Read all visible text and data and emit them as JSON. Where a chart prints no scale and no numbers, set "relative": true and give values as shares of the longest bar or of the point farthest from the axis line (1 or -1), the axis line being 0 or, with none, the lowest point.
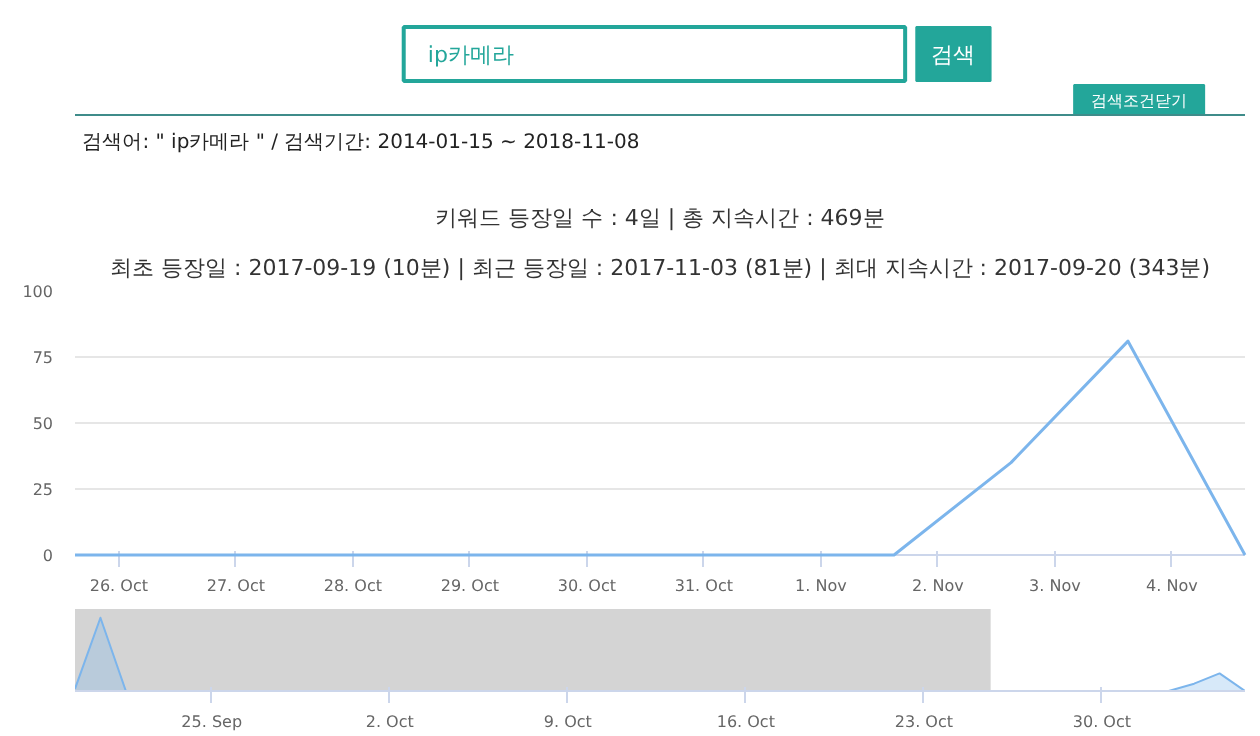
{
  "chart_data": [
    {
      "type": "line",
      "title": "키워드 등장일 수 : 4일 | 총 지속시간 : 469분",
      "subtitle": "최초 등장일 : 2017-09-19 (10분) | 최근 등장일 : 2017-11-03 (81분) | 최대 지속시간 : 2017-09-20 (343분)",
      "annotations": [
        "ip카메라",
        "검색",
        "검색조건닫기",
        "검색어: \" ip카메라 \" / 검색기간: 2014-01-15 ~ 2018-11-08"
      ],
      "x": [
        "2017-10-25T15:00",
        "2017-10-26T15:00",
        "2017-10-27T15:00",
        "2017-10-28T15:00",
        "2017-10-29T15:00",
        "2017-10-30T15:00",
        "2017-10-31T15:00",
        "2017-11-01T15:00",
        "2017-11-02T15:00",
        "2017-11-03T15:00",
        "2017-11-04T15:00"
      ],
      "series": [
        {
          "color": "#7cb5ec",
          "values": [
            0,
            0,
            0,
            0,
            0,
            0,
            0,
            0,
            35,
            81,
            0
          ]
        }
      ],
      "xlim": [
        "2017-10-25T15:00",
        "2017-11-04T15:00"
      ],
      "xticks": [
        {
          "value": "2017-10-26",
          "label": "26. Oct"
        },
        {
          "value": "2017-10-27",
          "label": "27. Oct"
        },
        {
          "value": "2017-10-28",
          "label": "28. Oct"
        },
        {
          "value": "2017-10-29",
          "label": "29. Oct"
        },
        {
          "value": "2017-10-30",
          "label": "30. Oct"
        },
        {
          "value": "2017-10-31",
          "label": "31. Oct"
        },
        {
          "value": "2017-11-01",
          "label": "1. Nov"
        },
        {
          "value": "2017-11-02",
          "label": "2. Nov"
        },
        {
          "value": "2017-11-03",
          "label": "3. Nov"
        },
        {
          "value": "2017-11-04",
          "label": "4. Nov"
        }
      ],
      "ylim": [
        0,
        100
      ],
      "yticks": [
        0,
        25,
        50,
        75,
        100
      ],
      "grid": "y"
    },
    {
      "type": "area",
      "relative": true,
      "tick_labels": "x",
      "x": [
        "2017-09-19T15:00",
        "2017-09-20T15:00",
        "2017-09-21T15:00",
        "2017-11-01T15:00",
        "2017-11-02T15:00",
        "2017-11-03T15:00",
        "2017-11-04T15:00"
      ],
      "series": [
        {
          "color": "#7cb5ec",
          "values": [
            0.03,
            1,
            0,
            0,
            0.1,
            0.24,
            0
          ]
        }
      ],
      "xlim": [
        "2017-09-19T15:00",
        "2017-11-04T15:00"
      ],
      "xticks": [
        {
          "value": "2017-09-25",
          "label": "25. Sep"
        },
        {
          "value": "2017-10-02",
          "label": "2. Oct"
        },
        {
          "value": "2017-10-09",
          "label": "9. Oct"
        },
        {
          "value": "2017-10-16",
          "label": "16. Oct"
        },
        {
          "value": "2017-10-23",
          "label": "23. Oct"
        },
        {
          "value": "2017-10-30",
          "label": "30. Oct"
        }
      ],
      "bands": [
        {
          "axis": "x",
          "from": "2017-09-19T15:00",
          "to": "2017-10-25T15:00",
          "color": "#cccccc"
        }
      ]
    }
  ]
}
